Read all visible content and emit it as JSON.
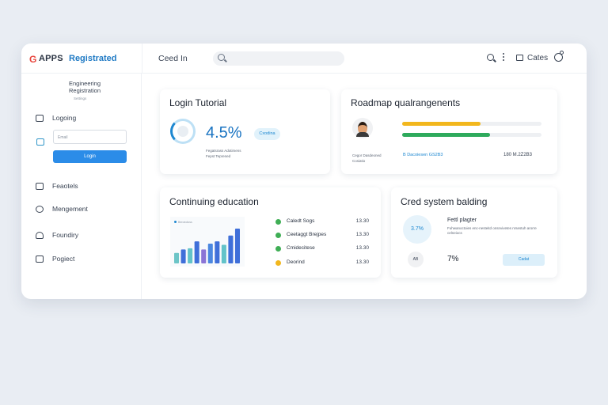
{
  "header": {
    "logo_letter": "G",
    "brand": "APPS",
    "registered": "Registrated",
    "nav_label": "Ceed In",
    "search_placeholder": "",
    "cates": "Cates"
  },
  "sidebar": {
    "title": "Engineering Registration",
    "subtitle": "Settings",
    "login_label": "Logoing",
    "login_placeholder": "Email",
    "login_button": "Login",
    "items": [
      {
        "label": "Feaotels",
        "icon": "chat-icon"
      },
      {
        "label": "Mengement",
        "icon": "settings-icon"
      },
      {
        "label": "Foundiry",
        "icon": "user-icon"
      },
      {
        "label": "Pogiect",
        "icon": "grid-icon"
      }
    ]
  },
  "cards": {
    "login_tutorial": {
      "title": "Login Tutorial",
      "percent": "4.5%",
      "progress": 0.3,
      "pill": "Cxodina",
      "foot_line1": "Fegatsrass Adotimens",
      "foot_line2": "Fepst Teprened"
    },
    "roadmap": {
      "title": "Roadmap qualrangenents",
      "bars": [
        {
          "fraction": 0.56,
          "color": "#f2b71d"
        },
        {
          "fraction": 0.63,
          "color": "#2eaa5c"
        }
      ],
      "foot_left_line1": "Cegor Dasdeoned",
      "foot_left_line2": "Cosiatio",
      "foot_mid": "B Dacoiesen GS2B3",
      "foot_right": "180 M.2Z2B3"
    },
    "education": {
      "title": "Continuing education",
      "chart_header": "Beroeotoss",
      "rows": [
        {
          "name": "Caledt Sogs",
          "value": "13.30",
          "color": "#3fae55"
        },
        {
          "name": "Ceetaggt Brejpes",
          "value": "13.30",
          "color": "#3fae55"
        },
        {
          "name": "Cmidecitese",
          "value": "13.30",
          "color": "#3fae55"
        },
        {
          "name": "Deorind",
          "value": "13.30",
          "color": "#f2b71d"
        }
      ]
    },
    "cred": {
      "title": "Cred system balding",
      "ring_value": "3.7%",
      "heading": "Fettl plagter",
      "text": "Fuhwanoctoies enc-nesteitd onsnvivetes nrsestuh arorre celneiocs",
      "circle_text": "AB",
      "percent": "7%",
      "button": "Cadat"
    }
  },
  "chart_data": {
    "type": "bar",
    "title": "",
    "categories": [
      "1",
      "2",
      "3",
      "4",
      "5",
      "6",
      "7",
      "8",
      "9",
      "10"
    ],
    "values": [
      4.5,
      6,
      6.5,
      9.5,
      6,
      8.5,
      9.5,
      8,
      12,
      15
    ],
    "colors": [
      "#6cc5c7",
      "#3f6fd9",
      "#62c3c9",
      "#3f6fd9",
      "#8b74d6",
      "#4b87e0",
      "#3f6fd9",
      "#62c3c9",
      "#3f6fd9",
      "#3f6fd9"
    ],
    "ylim": [
      0,
      16
    ]
  }
}
